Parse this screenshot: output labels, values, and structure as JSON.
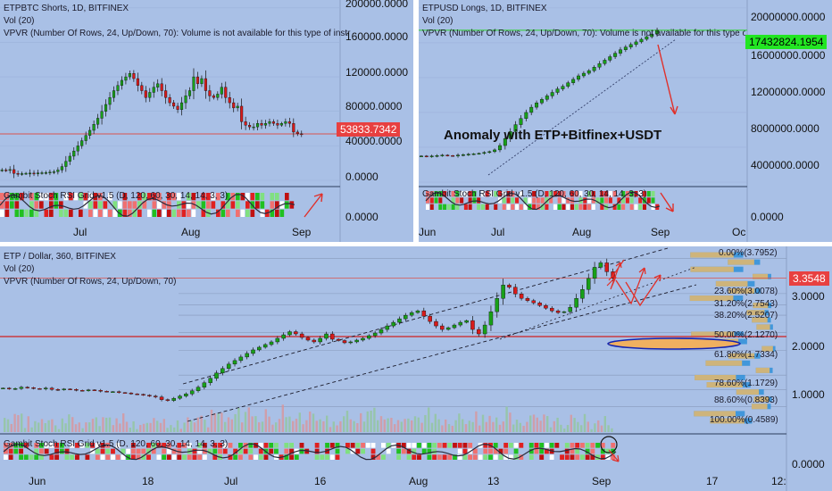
{
  "colors": {
    "panel_bg": "#a9c0e6",
    "up": "#18a018",
    "down": "#d81a1a",
    "price_line": "#d9534f",
    "divider": "#ffffff"
  },
  "chart_data": [
    {
      "type": "candlestick",
      "legend": [
        "ETPBTC Shorts, 1D, BITFINEX",
        "Vol (20)",
        "VPVR (Number Of Rows, 24, Up/Down, 70): Volume is not available for this type of instr"
      ],
      "y_ticks": [
        "200000.0000",
        "160000.0000",
        "120000.0000",
        "80000.0000",
        "40000.0000",
        "0.0000"
      ],
      "y_range": [
        0,
        205000
      ],
      "x_ticks": [
        "Jul",
        "Aug",
        "Sep"
      ],
      "last_price": "53833.7342",
      "sub_legend": "Gambit Stoch RSI Grid v1.5 (D, 120, 60, 30, 14, 14, 3, 3)",
      "sub_y_tick": "0.0000",
      "series_close": [
        12000,
        11800,
        12500,
        8000,
        7600,
        7800,
        8200,
        8400,
        8300,
        8600,
        8800,
        9000,
        9500,
        10000,
        12000,
        16000,
        22000,
        28000,
        34000,
        40000,
        46000,
        52000,
        58000,
        65000,
        72000,
        80000,
        88000,
        96000,
        104000,
        110000,
        116000,
        120000,
        124000,
        118000,
        110000,
        104000,
        96000,
        102000,
        108000,
        112000,
        104000,
        96000,
        90000,
        86000,
        82000,
        90000,
        98000,
        104000,
        120000,
        112000,
        118000,
        104000,
        98000,
        96000,
        100000,
        108000,
        96000,
        90000,
        84000,
        86000,
        68000,
        64000,
        62000,
        62000,
        66000,
        64000,
        66000,
        68000,
        66000,
        64000,
        66000,
        68000,
        66000,
        56000,
        54000,
        53834
      ]
    },
    {
      "type": "candlestick",
      "legend": [
        "ETPUSD Longs, 1D, BITFINEX",
        "Vol (20)",
        "VPVR (Number Of Rows, 24, Up/Down, 70): Volume is not available for this type of in"
      ],
      "y_ticks": [
        "20000000.0000",
        "16000000.0000",
        "12000000.0000",
        "8000000.0000",
        "4000000.0000",
        "0.0000"
      ],
      "y_range": [
        0,
        20500000
      ],
      "x_ticks": [
        "Jun",
        "Jul",
        "Aug",
        "Sep",
        "Oc"
      ],
      "last_price": "17432824.1954",
      "annotation": "Anomaly with ETP+Bitfinex+USDT",
      "sub_legend": "Gambit Stoch RSI Grid v1.5 (D, 120, 60, 30, 14, 14, 3, 3)",
      "series_close": [
        3000000,
        2950000,
        3000000,
        3050000,
        3100000,
        3050000,
        3000000,
        3100000,
        3150000,
        3200000,
        3250000,
        3300000,
        3400000,
        3500000,
        3700000,
        4200000,
        5000000,
        5800000,
        6600000,
        7300000,
        8000000,
        8600000,
        9100000,
        9500000,
        9900000,
        10300000,
        10700000,
        11000000,
        11400000,
        11800000,
        12200000,
        12500000,
        12800000,
        13200000,
        13600000,
        14000000,
        14400000,
        14800000,
        15200000,
        15500000,
        15800000,
        16100000,
        16400000,
        16700000,
        17000000,
        17433000
      ]
    },
    {
      "type": "candlestick",
      "legend": [
        "ETP / Dollar, 360, BITFINEX",
        "Vol (20)",
        "VPVR (Number Of Rows, 24, Up/Down, 70)"
      ],
      "y_ticks": [
        "3.0000",
        "2.0000",
        "1.0000",
        "0.0000"
      ],
      "y_range": [
        0.05,
        3.95
      ],
      "x_ticks": [
        "Jun",
        "18",
        "Jul",
        "16",
        "Aug",
        "13",
        "Sep",
        "17",
        "12:"
      ],
      "last_price": "3.3548",
      "fib_levels": [
        {
          "label": "0.00%(3.7952)",
          "value": 3.7952
        },
        {
          "label": "23.60%(3.0078)",
          "value": 3.0078
        },
        {
          "label": "31.20%(2.7543)",
          "value": 2.7543
        },
        {
          "label": "38.20%(2.5207)",
          "value": 2.5207
        },
        {
          "label": "50.00%(2.1270)",
          "value": 2.127
        },
        {
          "label": "61.80%(1.7334)",
          "value": 1.7334
        },
        {
          "label": "78.60%(1.1729)",
          "value": 1.1729
        },
        {
          "label": "88.60%(0.8393)",
          "value": 0.8393
        },
        {
          "label": "100.00%(0.4589)",
          "value": 0.4589
        }
      ],
      "sub_legend": "Gambit Stoch RSI Grid v1.5 (D, 120, 60, 30, 14, 14, 3, 3)",
      "series_close": [
        0.88,
        0.86,
        0.87,
        0.9,
        0.89,
        0.87,
        0.86,
        0.88,
        0.85,
        0.84,
        0.86,
        0.85,
        0.83,
        0.82,
        0.84,
        0.83,
        0.81,
        0.8,
        0.8,
        0.78,
        0.77,
        0.75,
        0.74,
        0.72,
        0.7,
        0.68,
        0.62,
        0.6,
        0.65,
        0.7,
        0.75,
        0.82,
        0.9,
        1.0,
        1.1,
        1.22,
        1.32,
        1.42,
        1.5,
        1.58,
        1.66,
        1.74,
        1.8,
        1.86,
        1.92,
        2.0,
        2.08,
        2.15,
        2.1,
        2.02,
        1.96,
        1.92,
        2.0,
        2.1,
        1.98,
        1.95,
        1.9,
        1.92,
        1.96,
        2.0,
        2.06,
        2.12,
        2.2,
        2.28,
        2.36,
        2.44,
        2.52,
        2.58,
        2.62,
        2.5,
        2.38,
        2.28,
        2.2,
        2.24,
        2.3,
        2.36,
        2.4,
        2.2,
        2.1,
        2.3,
        2.6,
        2.9,
        3.2,
        3.15,
        3.0,
        2.9,
        2.85,
        2.8,
        2.74,
        2.68,
        2.62,
        2.58,
        2.6,
        2.7,
        2.9,
        3.1,
        3.35,
        3.6,
        3.7,
        3.5,
        3.3548
      ]
    }
  ]
}
